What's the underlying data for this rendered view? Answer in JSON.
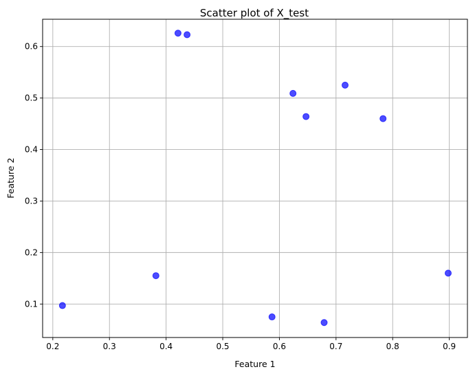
{
  "chart_data": {
    "type": "scatter",
    "title": "Scatter plot of X_test",
    "xlabel": "Feature 1",
    "ylabel": "Feature 2",
    "xlim": [
      0.182,
      0.932
    ],
    "ylim": [
      0.035,
      0.653
    ],
    "xticks": [
      0.2,
      0.3,
      0.4,
      0.5,
      0.6,
      0.7,
      0.8,
      0.9
    ],
    "xtick_labels": [
      "0.2",
      "0.3",
      "0.4",
      "0.5",
      "0.6",
      "0.7",
      "0.8",
      "0.9"
    ],
    "yticks": [
      0.1,
      0.2,
      0.3,
      0.4,
      0.5,
      0.6
    ],
    "ytick_labels": [
      "0.1",
      "0.2",
      "0.3",
      "0.4",
      "0.5",
      "0.6"
    ],
    "grid": true,
    "marker_color": "#0000ff",
    "marker_opacity": 0.7,
    "points": [
      {
        "x": 0.217,
        "y": 0.097
      },
      {
        "x": 0.382,
        "y": 0.155
      },
      {
        "x": 0.421,
        "y": 0.626
      },
      {
        "x": 0.437,
        "y": 0.623
      },
      {
        "x": 0.587,
        "y": 0.075
      },
      {
        "x": 0.624,
        "y": 0.509
      },
      {
        "x": 0.647,
        "y": 0.464
      },
      {
        "x": 0.679,
        "y": 0.064
      },
      {
        "x": 0.716,
        "y": 0.525
      },
      {
        "x": 0.783,
        "y": 0.46
      },
      {
        "x": 0.898,
        "y": 0.16
      }
    ]
  }
}
